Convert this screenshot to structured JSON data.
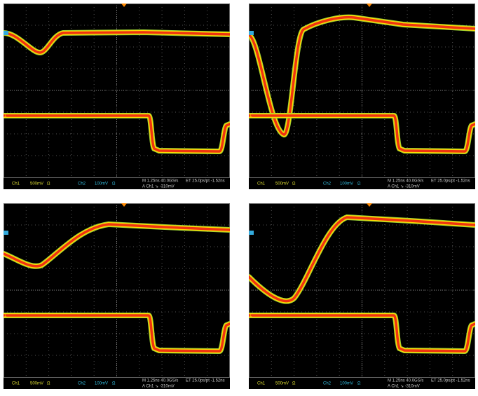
{
  "panels": [
    {
      "ref_marker": "1",
      "ch1_label": "Ch1",
      "ch1_scale": "500mV",
      "ch1_coupling": "Ω",
      "ch2_label": "Ch2",
      "ch2_scale": "100mV",
      "ch2_coupling": "Ω",
      "timebase": "M 1.25ns 40.0GS/s",
      "equivalent_time": "ET 25.0ps/pt -1.52ns",
      "trigger": "A Ch1 ↘ -310mV"
    },
    {
      "ref_marker": "1",
      "ch1_label": "Ch1",
      "ch1_scale": "500mV",
      "ch1_coupling": "Ω",
      "ch2_label": "Ch2",
      "ch2_scale": "100mV",
      "ch2_coupling": "Ω",
      "timebase": "M 1.25ns 40.0GS/s",
      "equivalent_time": "ET 25.0ps/pt -1.52ns",
      "trigger": "A Ch1 ↘ -310mV"
    },
    {
      "ref_marker": "1",
      "ch1_label": "Ch1",
      "ch1_scale": "500mV",
      "ch1_coupling": "Ω",
      "ch2_label": "Ch2",
      "ch2_scale": "100mV",
      "ch2_coupling": "Ω",
      "timebase": "M 1.25ns 40.0GS/s",
      "equivalent_time": "ET 25.0ps/pt -1.52ns",
      "trigger": "A Ch1 ↘ -310mV"
    },
    {
      "ref_marker": "1",
      "ch1_label": "Ch1",
      "ch1_scale": "500mV",
      "ch1_coupling": "Ω",
      "ch2_label": "Ch2",
      "ch2_scale": "100mV",
      "ch2_coupling": "Ω",
      "timebase": "M 1.25ns 40.0GS/s",
      "equivalent_time": "ET 25.0ps/pt -1.52ns",
      "trigger": "A Ch1 ↘ -310mV"
    }
  ]
}
